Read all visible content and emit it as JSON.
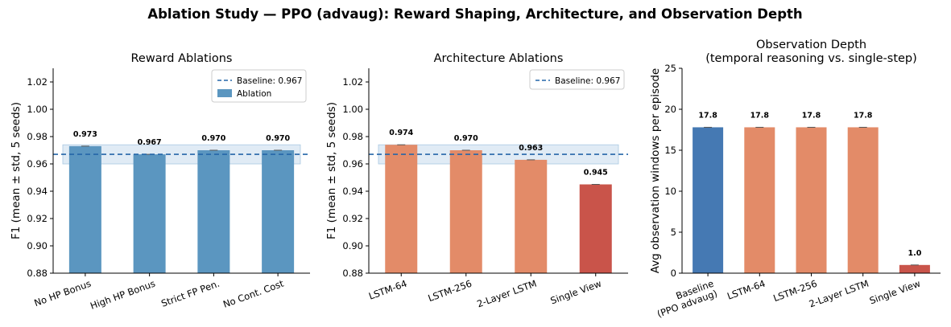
{
  "suptitle": "Ablation Study — PPO (advaug): Reward Shaping, Architecture, and Observation Depth",
  "chart_data": [
    {
      "type": "bar",
      "title": "Reward Ablations",
      "ylabel": "F1 (mean ± std, 5 seeds)",
      "xlabel": "",
      "ylim": [
        0.88,
        1.03
      ],
      "yticks": [
        "0.88",
        "0.90",
        "0.92",
        "0.94",
        "0.96",
        "0.98",
        "1.00",
        "1.02"
      ],
      "categories": [
        "No HP Bonus",
        "High HP Bonus",
        "Strict FP Pen.",
        "No Cont. Cost"
      ],
      "values": [
        0.973,
        0.967,
        0.97,
        0.97
      ],
      "value_labels": [
        "0.973",
        "0.967",
        "0.970",
        "0.970"
      ],
      "bar_colors": [
        "#5b96c0",
        "#5b96c0",
        "#5b96c0",
        "#5b96c0"
      ],
      "baseline": 0.967,
      "baseline_band": [
        0.96,
        0.974
      ],
      "legend": {
        "placement": "upper right",
        "entries": [
          "Baseline: 0.967",
          "Ablation"
        ]
      },
      "grid": false
    },
    {
      "type": "bar",
      "title": "Architecture Ablations",
      "ylabel": "F1 (mean ± std, 5 seeds)",
      "xlabel": "",
      "ylim": [
        0.88,
        1.03
      ],
      "yticks": [
        "0.88",
        "0.90",
        "0.92",
        "0.94",
        "0.96",
        "0.98",
        "1.00",
        "1.02"
      ],
      "categories": [
        "LSTM-64",
        "LSTM-256",
        "2-Layer LSTM",
        "Single View"
      ],
      "values": [
        0.974,
        0.97,
        0.963,
        0.945
      ],
      "value_labels": [
        "0.974",
        "0.970",
        "0.963",
        "0.945"
      ],
      "bar_colors": [
        "#e38b68",
        "#e38b68",
        "#e38b68",
        "#c9544a"
      ],
      "baseline": 0.967,
      "baseline_band": [
        0.96,
        0.974
      ],
      "legend": {
        "placement": "upper right",
        "entries": [
          "Baseline: 0.967"
        ]
      },
      "grid": false
    },
    {
      "type": "bar",
      "title": "Observation Depth",
      "subtitle": "(temporal reasoning vs. single-step)",
      "ylabel": "Avg observation windows per episode",
      "xlabel": "",
      "ylim": [
        0,
        25
      ],
      "yticks": [
        "0",
        "5",
        "10",
        "15",
        "20",
        "25"
      ],
      "categories": [
        "Baseline\n(PPO advaug)",
        "LSTM-64",
        "LSTM-256",
        "2-Layer LSTM",
        "Single View"
      ],
      "values": [
        17.8,
        17.8,
        17.8,
        17.8,
        1.0
      ],
      "value_labels": [
        "17.8",
        "17.8",
        "17.8",
        "17.8",
        "1.0"
      ],
      "bar_colors": [
        "#4579b3",
        "#e38b68",
        "#e38b68",
        "#e38b68",
        "#c9544a"
      ],
      "grid": false
    }
  ]
}
